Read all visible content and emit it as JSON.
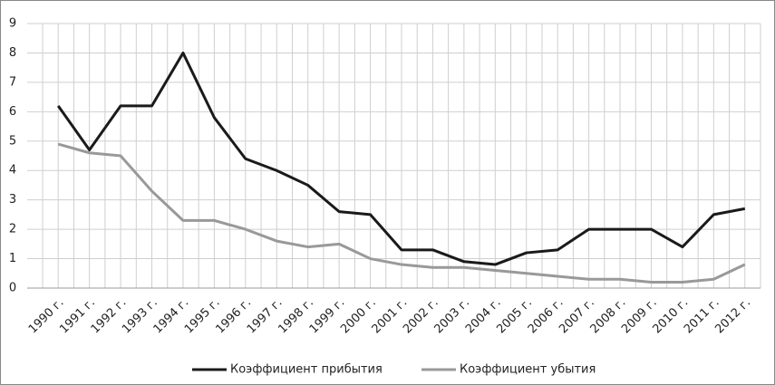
{
  "chart_data": {
    "type": "line",
    "categories": [
      "1990 г.",
      "1991 г.",
      "1992 г.",
      "1993 г.",
      "1994 г.",
      "1995 г.",
      "1996 г.",
      "1997 г.",
      "1998 г.",
      "1999 г.",
      "2000 г.",
      "2001 г.",
      "2002 г.",
      "2003 г.",
      "2004 г.",
      "2005 г.",
      "2006 г.",
      "2007 г.",
      "2008 г.",
      "2009 г.",
      "2010 г.",
      "2011 г.",
      "2012 г."
    ],
    "series": [
      {
        "name": "Коэффициент прибытия",
        "color": "#1a1a1a",
        "values": [
          6.2,
          4.7,
          6.2,
          6.2,
          8.0,
          5.8,
          4.4,
          4.0,
          3.5,
          2.6,
          2.5,
          1.3,
          1.3,
          0.9,
          0.8,
          1.2,
          1.3,
          2.0,
          2.0,
          2.0,
          1.4,
          2.5,
          2.7
        ]
      },
      {
        "name": "Коэффициент убытия",
        "color": "#999999",
        "values": [
          4.9,
          4.6,
          4.5,
          3.3,
          2.3,
          2.3,
          2.0,
          1.6,
          1.4,
          1.5,
          1.0,
          0.8,
          0.7,
          0.7,
          0.6,
          0.5,
          0.4,
          0.3,
          0.3,
          0.2,
          0.2,
          0.3,
          0.8
        ]
      }
    ],
    "ylim": [
      0,
      9
    ],
    "yticks": [
      0,
      1,
      2,
      3,
      4,
      5,
      6,
      7,
      8,
      9
    ],
    "grid": true,
    "legend": "bottom"
  }
}
